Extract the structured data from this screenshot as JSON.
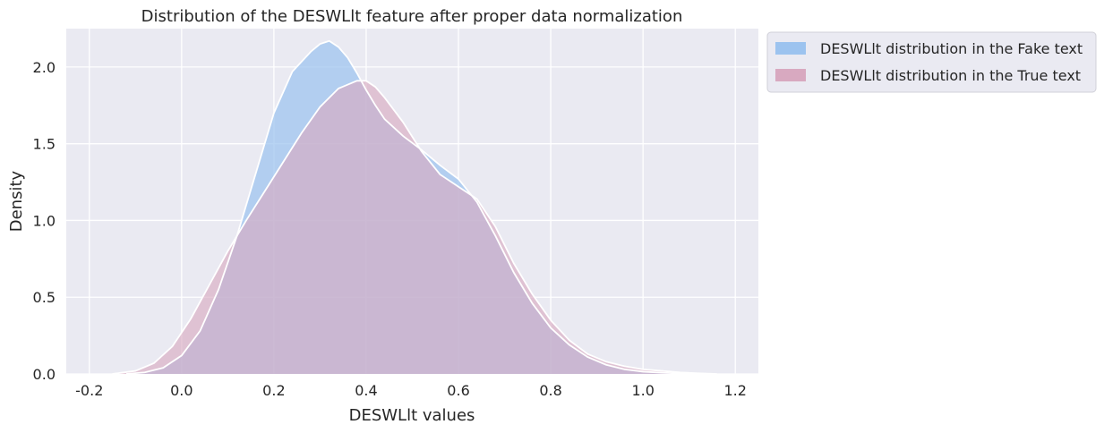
{
  "chart_data": {
    "type": "area",
    "title": "Distribution of the DESWLlt feature after proper data normalization",
    "xlabel": "DESWLlt values",
    "ylabel": "Density",
    "xlim": [
      -0.25,
      1.25
    ],
    "ylim": [
      0.0,
      2.25
    ],
    "xticks": [
      -0.2,
      0.0,
      0.2,
      0.4,
      0.6,
      0.8,
      1.0,
      1.2
    ],
    "yticks": [
      0.0,
      0.5,
      1.0,
      1.5,
      2.0
    ],
    "grid": true,
    "legend": {
      "placement": "outside-top-right",
      "entries": [
        "DESWLlt distribution in the Fake text",
        "DESWLlt distribution in the True text"
      ]
    },
    "colors": {
      "plot_bg": "#eaeaf2",
      "grid": "#ffffff",
      "fake": "#9cc3ef",
      "true": "#d8a9c0",
      "overlap": "#b2a6d2"
    },
    "series": [
      {
        "name": "DESWLlt distribution in the Fake text",
        "x": [
          -0.12,
          -0.08,
          -0.04,
          0.0,
          0.04,
          0.08,
          0.12,
          0.16,
          0.2,
          0.24,
          0.28,
          0.3,
          0.32,
          0.34,
          0.36,
          0.38,
          0.4,
          0.42,
          0.44,
          0.48,
          0.52,
          0.56,
          0.6,
          0.64,
          0.68,
          0.72,
          0.76,
          0.8,
          0.84,
          0.88,
          0.92,
          0.96,
          1.0,
          1.04,
          1.08,
          1.12
        ],
        "y": [
          0.0,
          0.01,
          0.04,
          0.12,
          0.28,
          0.55,
          0.9,
          1.3,
          1.7,
          1.97,
          2.1,
          2.15,
          2.17,
          2.13,
          2.06,
          1.96,
          1.85,
          1.75,
          1.66,
          1.55,
          1.46,
          1.36,
          1.27,
          1.12,
          0.9,
          0.66,
          0.46,
          0.3,
          0.19,
          0.11,
          0.06,
          0.03,
          0.015,
          0.008,
          0.003,
          0.0
        ]
      },
      {
        "name": "DESWLlt distribution in the True text",
        "x": [
          -0.15,
          -0.1,
          -0.06,
          -0.02,
          0.02,
          0.06,
          0.1,
          0.14,
          0.18,
          0.22,
          0.26,
          0.3,
          0.34,
          0.38,
          0.4,
          0.42,
          0.44,
          0.48,
          0.52,
          0.56,
          0.6,
          0.64,
          0.68,
          0.72,
          0.76,
          0.8,
          0.84,
          0.88,
          0.92,
          0.96,
          1.0,
          1.04,
          1.08,
          1.12,
          1.16
        ],
        "y": [
          0.0,
          0.02,
          0.07,
          0.18,
          0.36,
          0.58,
          0.8,
          1.0,
          1.19,
          1.38,
          1.57,
          1.74,
          1.86,
          1.91,
          1.91,
          1.87,
          1.8,
          1.64,
          1.45,
          1.3,
          1.22,
          1.14,
          0.96,
          0.72,
          0.52,
          0.35,
          0.22,
          0.13,
          0.08,
          0.05,
          0.03,
          0.02,
          0.01,
          0.004,
          0.0
        ]
      }
    ]
  }
}
